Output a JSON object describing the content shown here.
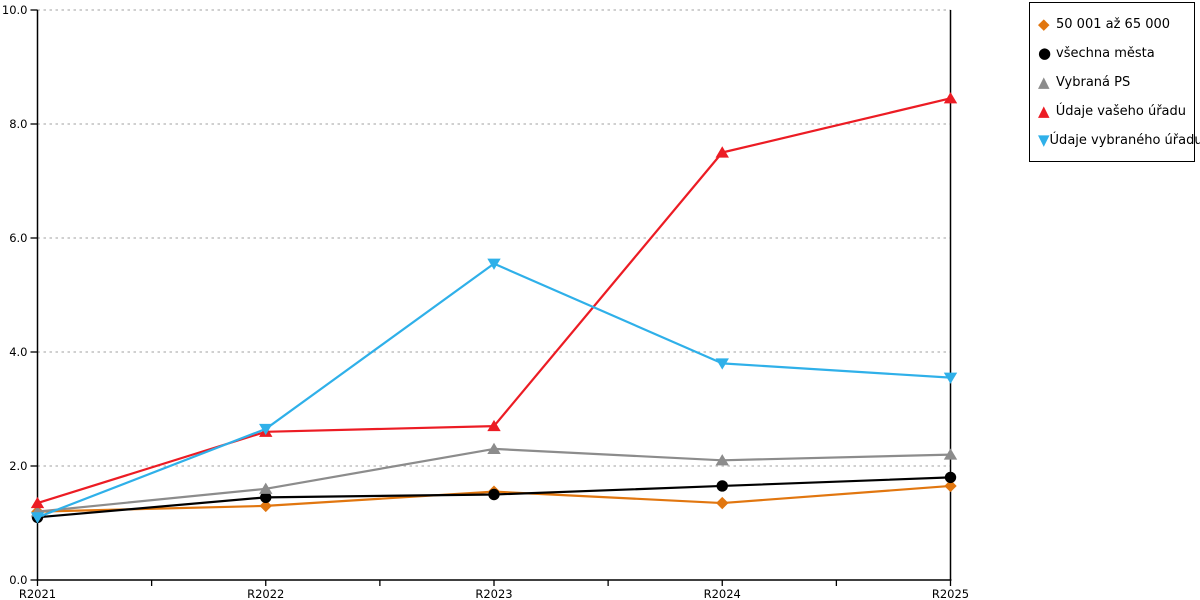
{
  "chart_data": {
    "type": "line",
    "title": "",
    "xlabel": "",
    "ylabel": "",
    "categories": [
      "R2021",
      "R2022",
      "R2023",
      "R2024",
      "R2025"
    ],
    "ylim": [
      0,
      10
    ],
    "yticks": {
      "values": [
        0,
        2,
        4,
        6,
        8,
        10
      ],
      "labels": [
        "0.0",
        "2.0",
        "4.0",
        "6.0",
        "8.0",
        "10.0"
      ]
    },
    "grid": "horizontal-dotted",
    "gridline_color": "#b4b4b4",
    "axis_color": "#000000",
    "legend_position": "top-right-outside",
    "series": [
      {
        "name": "50 001 až 65 000",
        "marker": "diamond",
        "color": "#e1760f",
        "values": [
          1.2,
          1.3,
          1.55,
          1.35,
          1.65
        ]
      },
      {
        "name": "všechna města",
        "marker": "circle",
        "color": "#000000",
        "values": [
          1.1,
          1.45,
          1.5,
          1.65,
          1.8
        ]
      },
      {
        "name": "Vybraná PS",
        "marker": "triangle-up",
        "color": "#8c8c8c",
        "values": [
          1.2,
          1.6,
          2.3,
          2.1,
          2.2
        ]
      },
      {
        "name": "Údaje vašeho úřadu",
        "marker": "triangle-up",
        "color": "#ec1c24",
        "values": [
          1.35,
          2.6,
          2.7,
          7.5,
          8.45
        ]
      },
      {
        "name": "Údaje vybraného úřadu",
        "marker": "triangle-down",
        "color": "#2fb0e9",
        "values": [
          1.1,
          2.65,
          5.55,
          3.8,
          3.55
        ]
      }
    ]
  }
}
